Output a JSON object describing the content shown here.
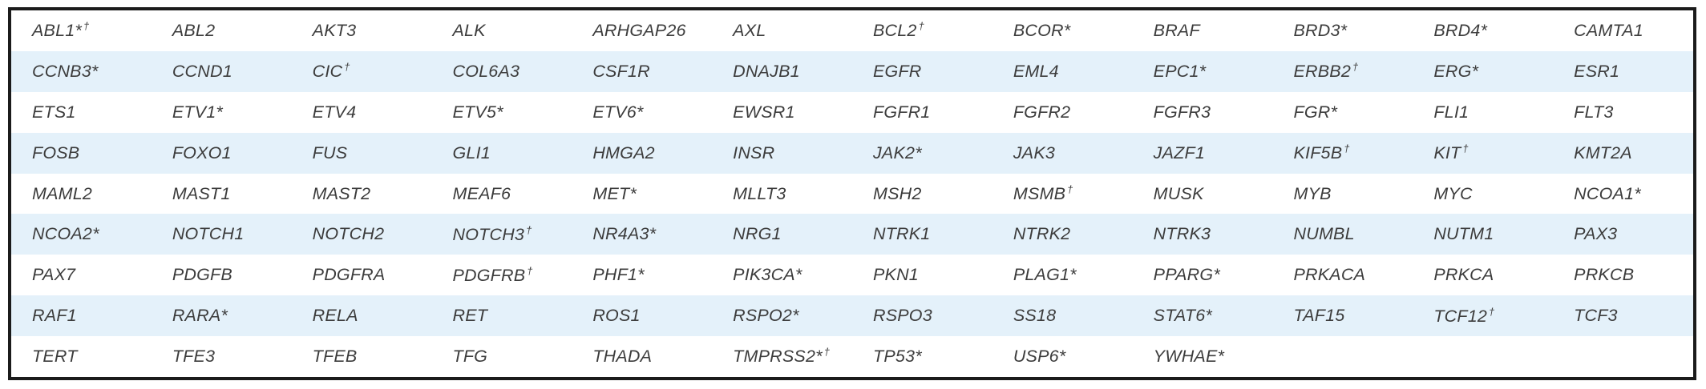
{
  "colors": {
    "stripe": "#e4f1fa",
    "border": "#1b1b1b",
    "text": "#3c3c3c"
  },
  "table": {
    "rows": [
      [
        "ABL1*†",
        "ABL2",
        "AKT3",
        "ALK",
        "ARHGAP26",
        "AXL",
        "BCL2†",
        "BCOR*",
        "BRAF",
        "BRD3*",
        "BRD4*",
        "CAMTA1"
      ],
      [
        "CCNB3*",
        "CCND1",
        "CIC†",
        "COL6A3",
        "CSF1R",
        "DNAJB1",
        "EGFR",
        "EML4",
        "EPC1*",
        "ERBB2†",
        "ERG*",
        "ESR1"
      ],
      [
        "ETS1",
        "ETV1*",
        "ETV4",
        "ETV5*",
        "ETV6*",
        "EWSR1",
        "FGFR1",
        "FGFR2",
        "FGFR3",
        "FGR*",
        "FLI1",
        "FLT3"
      ],
      [
        "FOSB",
        "FOXO1",
        "FUS",
        "GLI1",
        "HMGA2",
        "INSR",
        "JAK2*",
        "JAK3",
        "JAZF1",
        "KIF5B†",
        "KIT†",
        "KMT2A"
      ],
      [
        "MAML2",
        "MAST1",
        "MAST2",
        "MEAF6",
        "MET*",
        "MLLT3",
        "MSH2",
        "MSMB†",
        "MUSK",
        "MYB",
        "MYC",
        "NCOA1*"
      ],
      [
        "NCOA2*",
        "NOTCH1",
        "NOTCH2",
        "NOTCH3†",
        "NR4A3*",
        "NRG1",
        "NTRK1",
        "NTRK2",
        "NTRK3",
        "NUMBL",
        "NUTM1",
        "PAX3"
      ],
      [
        "PAX7",
        "PDGFB",
        "PDGFRA",
        "PDGFRB†",
        "PHF1*",
        "PIK3CA*",
        "PKN1",
        "PLAG1*",
        "PPARG*",
        "PRKACA",
        "PRKCA",
        "PRKCB"
      ],
      [
        "RAF1",
        "RARA*",
        "RELA",
        "RET",
        "ROS1",
        "RSPO2*",
        "RSPO3",
        "SS18",
        "STAT6*",
        "TAF15",
        "TCF12†",
        "TCF3"
      ],
      [
        "TERT",
        "TFE3",
        "TFEB",
        "TFG",
        "THADA",
        "TMPRSS2*†",
        "TP53*",
        "USP6*",
        "YWHAE*"
      ]
    ]
  }
}
